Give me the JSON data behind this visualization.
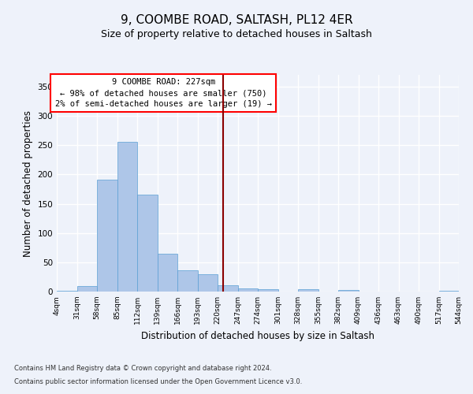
{
  "title1": "9, COOMBE ROAD, SALTASH, PL12 4ER",
  "title2": "Size of property relative to detached houses in Saltash",
  "xlabel": "Distribution of detached houses by size in Saltash",
  "ylabel": "Number of detached properties",
  "footnote1": "Contains HM Land Registry data © Crown copyright and database right 2024.",
  "footnote2": "Contains public sector information licensed under the Open Government Licence v3.0.",
  "annotation_line1": "9 COOMBE ROAD: 227sqm",
  "annotation_line2": "← 98% of detached houses are smaller (750)",
  "annotation_line3": "2% of semi-detached houses are larger (19) →",
  "bar_color": "#aec6e8",
  "bar_edge_color": "#5a9fd4",
  "vline_color": "#8b0000",
  "vline_x": 227,
  "bin_edges": [
    4,
    31,
    58,
    85,
    112,
    139,
    166,
    193,
    220,
    247,
    274,
    301,
    328,
    355,
    382,
    409,
    436,
    463,
    490,
    517,
    544
  ],
  "bar_heights": [
    2,
    9,
    191,
    255,
    166,
    65,
    37,
    29,
    11,
    5,
    4,
    0,
    4,
    0,
    3,
    0,
    0,
    0,
    0,
    2
  ],
  "ylim": [
    0,
    370
  ],
  "yticks": [
    0,
    50,
    100,
    150,
    200,
    250,
    300,
    350
  ],
  "background_color": "#eef2fa",
  "grid_color": "#ffffff",
  "title1_fontsize": 11,
  "title2_fontsize": 9,
  "xlabel_fontsize": 8.5,
  "ylabel_fontsize": 8.5
}
